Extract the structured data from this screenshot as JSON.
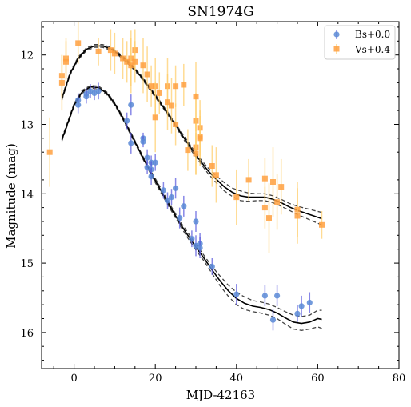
{
  "chart_data": {
    "type": "scatter",
    "title": "SN1974G",
    "xlabel": "MJD-42163",
    "ylabel": "Magnitude (mag)",
    "xlim": [
      -8,
      80
    ],
    "ylim": [
      16.52,
      11.52
    ],
    "y_inverted": true,
    "xticks": [
      "0",
      "20",
      "40",
      "60",
      "80"
    ],
    "yticks": [
      "12",
      "13",
      "14",
      "15",
      "16"
    ],
    "legend_position": "top-right",
    "colors": {
      "Bs": "#5b8ad6",
      "Vs": "#ffa040",
      "Bs_err": "#5555dd",
      "Vs_err": "#ffcc66",
      "fit": "#000000",
      "band": "#444444"
    },
    "series": [
      {
        "name": "Bs+0.0",
        "marker": "circle",
        "points": [
          [
            1,
            12.65,
            0.1
          ],
          [
            1,
            12.72,
            0.12
          ],
          [
            3,
            12.56,
            0.08
          ],
          [
            3,
            12.6,
            0.1
          ],
          [
            4,
            12.52,
            0.1
          ],
          [
            5,
            12.55,
            0.1
          ],
          [
            6,
            12.52,
            0.12
          ],
          [
            13,
            12.95,
            0.12
          ],
          [
            14,
            12.72,
            0.15
          ],
          [
            14,
            13.27,
            0.15
          ],
          [
            17,
            13.2,
            0.08
          ],
          [
            17,
            13.25,
            0.08
          ],
          [
            18,
            13.48,
            0.12
          ],
          [
            18,
            13.62,
            0.1
          ],
          [
            19,
            13.55,
            0.1
          ],
          [
            19,
            13.65,
            0.12
          ],
          [
            19,
            13.75,
            0.12
          ],
          [
            20,
            13.55,
            0.12
          ],
          [
            22,
            13.95,
            0.12
          ],
          [
            23,
            14.1,
            0.12
          ],
          [
            24,
            14.05,
            0.12
          ],
          [
            25,
            13.92,
            0.15
          ],
          [
            26,
            14.35,
            0.15
          ],
          [
            27,
            14.18,
            0.15
          ],
          [
            29,
            14.65,
            0.12
          ],
          [
            30,
            14.4,
            0.15
          ],
          [
            30,
            14.75,
            0.15
          ],
          [
            31,
            14.72,
            0.15
          ],
          [
            31,
            14.78,
            0.15
          ],
          [
            34,
            15.05,
            0.12
          ],
          [
            40,
            15.45,
            0.15
          ],
          [
            47,
            15.47,
            0.15
          ],
          [
            49,
            15.82,
            0.15
          ],
          [
            50,
            15.47,
            0.15
          ],
          [
            55,
            15.73,
            0.12
          ],
          [
            56,
            15.62,
            0.15
          ],
          [
            58,
            15.57,
            0.15
          ]
        ]
      },
      {
        "name": "Vs+0.4",
        "marker": "square",
        "points": [
          [
            -6,
            13.4,
            0.5
          ],
          [
            -3,
            12.3,
            0.3
          ],
          [
            -3,
            12.4,
            0.4
          ],
          [
            -2,
            12.05,
            0.3
          ],
          [
            -2,
            12.1,
            0.3
          ],
          [
            1,
            11.83,
            0.3
          ],
          [
            6,
            11.95,
            0.2
          ],
          [
            9,
            11.93,
            0.3
          ],
          [
            10,
            11.98,
            0.3
          ],
          [
            12,
            12.05,
            0.3
          ],
          [
            13,
            12.1,
            0.3
          ],
          [
            14,
            12.05,
            0.4
          ],
          [
            14,
            12.15,
            0.4
          ],
          [
            15,
            11.93,
            0.3
          ],
          [
            15,
            12.1,
            0.3
          ],
          [
            17,
            12.15,
            0.4
          ],
          [
            18,
            12.28,
            0.4
          ],
          [
            19,
            12.45,
            0.3
          ],
          [
            20,
            12.45,
            0.4
          ],
          [
            20,
            12.9,
            0.5
          ],
          [
            21,
            12.55,
            0.3
          ],
          [
            23,
            12.45,
            0.4
          ],
          [
            23,
            12.68,
            0.4
          ],
          [
            24,
            12.73,
            0.4
          ],
          [
            25,
            12.45,
            0.3
          ],
          [
            25,
            13.0,
            0.3
          ],
          [
            27,
            12.43,
            0.3
          ],
          [
            28,
            13.37,
            0.3
          ],
          [
            30,
            13.33,
            0.4
          ],
          [
            30,
            13.42,
            0.3
          ],
          [
            30,
            12.95,
            0.4
          ],
          [
            30,
            12.6,
            0.5
          ],
          [
            31,
            13.05,
            0.4
          ],
          [
            31,
            13.18,
            0.3
          ],
          [
            31,
            13.2,
            0.4
          ],
          [
            34,
            13.6,
            0.3
          ],
          [
            35,
            13.73,
            0.4
          ],
          [
            40,
            14.05,
            0.4
          ],
          [
            43,
            13.8,
            0.3
          ],
          [
            47,
            13.78,
            0.3
          ],
          [
            47,
            14.2,
            0.3
          ],
          [
            48,
            14.35,
            0.5
          ],
          [
            49,
            13.83,
            0.5
          ],
          [
            50,
            14.12,
            0.4
          ],
          [
            51,
            13.9,
            0.4
          ],
          [
            55,
            14.23,
            0.4
          ],
          [
            55,
            14.32,
            0.4
          ],
          [
            61,
            14.45,
            0.2
          ]
        ]
      }
    ],
    "fits": [
      {
        "for": "Bs+0.0",
        "x": [
          -3,
          0,
          2,
          4,
          6,
          8,
          10,
          12,
          14,
          16,
          18,
          20,
          22,
          24,
          26,
          28,
          30,
          32,
          34,
          36,
          38,
          40,
          42,
          44,
          46,
          48,
          50,
          52,
          54,
          56,
          58,
          60,
          61
        ],
        "y": [
          13.22,
          12.72,
          12.53,
          12.46,
          12.47,
          12.55,
          12.7,
          12.91,
          13.14,
          13.37,
          13.6,
          13.81,
          14.02,
          14.22,
          14.42,
          14.6,
          14.77,
          14.93,
          15.1,
          15.26,
          15.4,
          15.51,
          15.58,
          15.62,
          15.64,
          15.67,
          15.72,
          15.79,
          15.85,
          15.87,
          15.85,
          15.8,
          15.81
        ],
        "band": [
          0.02,
          0.02,
          0.02,
          0.02,
          0.02,
          0.02,
          0.02,
          0.02,
          0.02,
          0.02,
          0.02,
          0.03,
          0.03,
          0.03,
          0.03,
          0.04,
          0.04,
          0.04,
          0.05,
          0.07,
          0.08,
          0.09,
          0.09,
          0.08,
          0.08,
          0.08,
          0.08,
          0.09,
          0.1,
          0.1,
          0.1,
          0.12,
          0.13
        ]
      },
      {
        "for": "Vs+0.4",
        "x": [
          -3,
          -1,
          1,
          3,
          5,
          7,
          9,
          11,
          13,
          15,
          17,
          19,
          21,
          23,
          25,
          27,
          29,
          31,
          33,
          35,
          37,
          39,
          41,
          43,
          45,
          47,
          49,
          51,
          53,
          55,
          57,
          59,
          61
        ],
        "y": [
          12.63,
          12.27,
          12.05,
          11.92,
          11.87,
          11.87,
          11.91,
          11.99,
          12.09,
          12.21,
          12.35,
          12.51,
          12.67,
          12.84,
          13.01,
          13.19,
          13.36,
          13.52,
          13.67,
          13.79,
          13.9,
          13.98,
          14.03,
          14.05,
          14.05,
          14.05,
          14.08,
          14.13,
          14.19,
          14.24,
          14.28,
          14.32,
          14.36
        ],
        "band": [
          0.02,
          0.02,
          0.02,
          0.02,
          0.02,
          0.02,
          0.02,
          0.02,
          0.02,
          0.02,
          0.02,
          0.02,
          0.02,
          0.02,
          0.02,
          0.03,
          0.03,
          0.03,
          0.04,
          0.05,
          0.06,
          0.06,
          0.07,
          0.06,
          0.05,
          0.05,
          0.05,
          0.05,
          0.05,
          0.06,
          0.07,
          0.08,
          0.09
        ]
      }
    ]
  }
}
